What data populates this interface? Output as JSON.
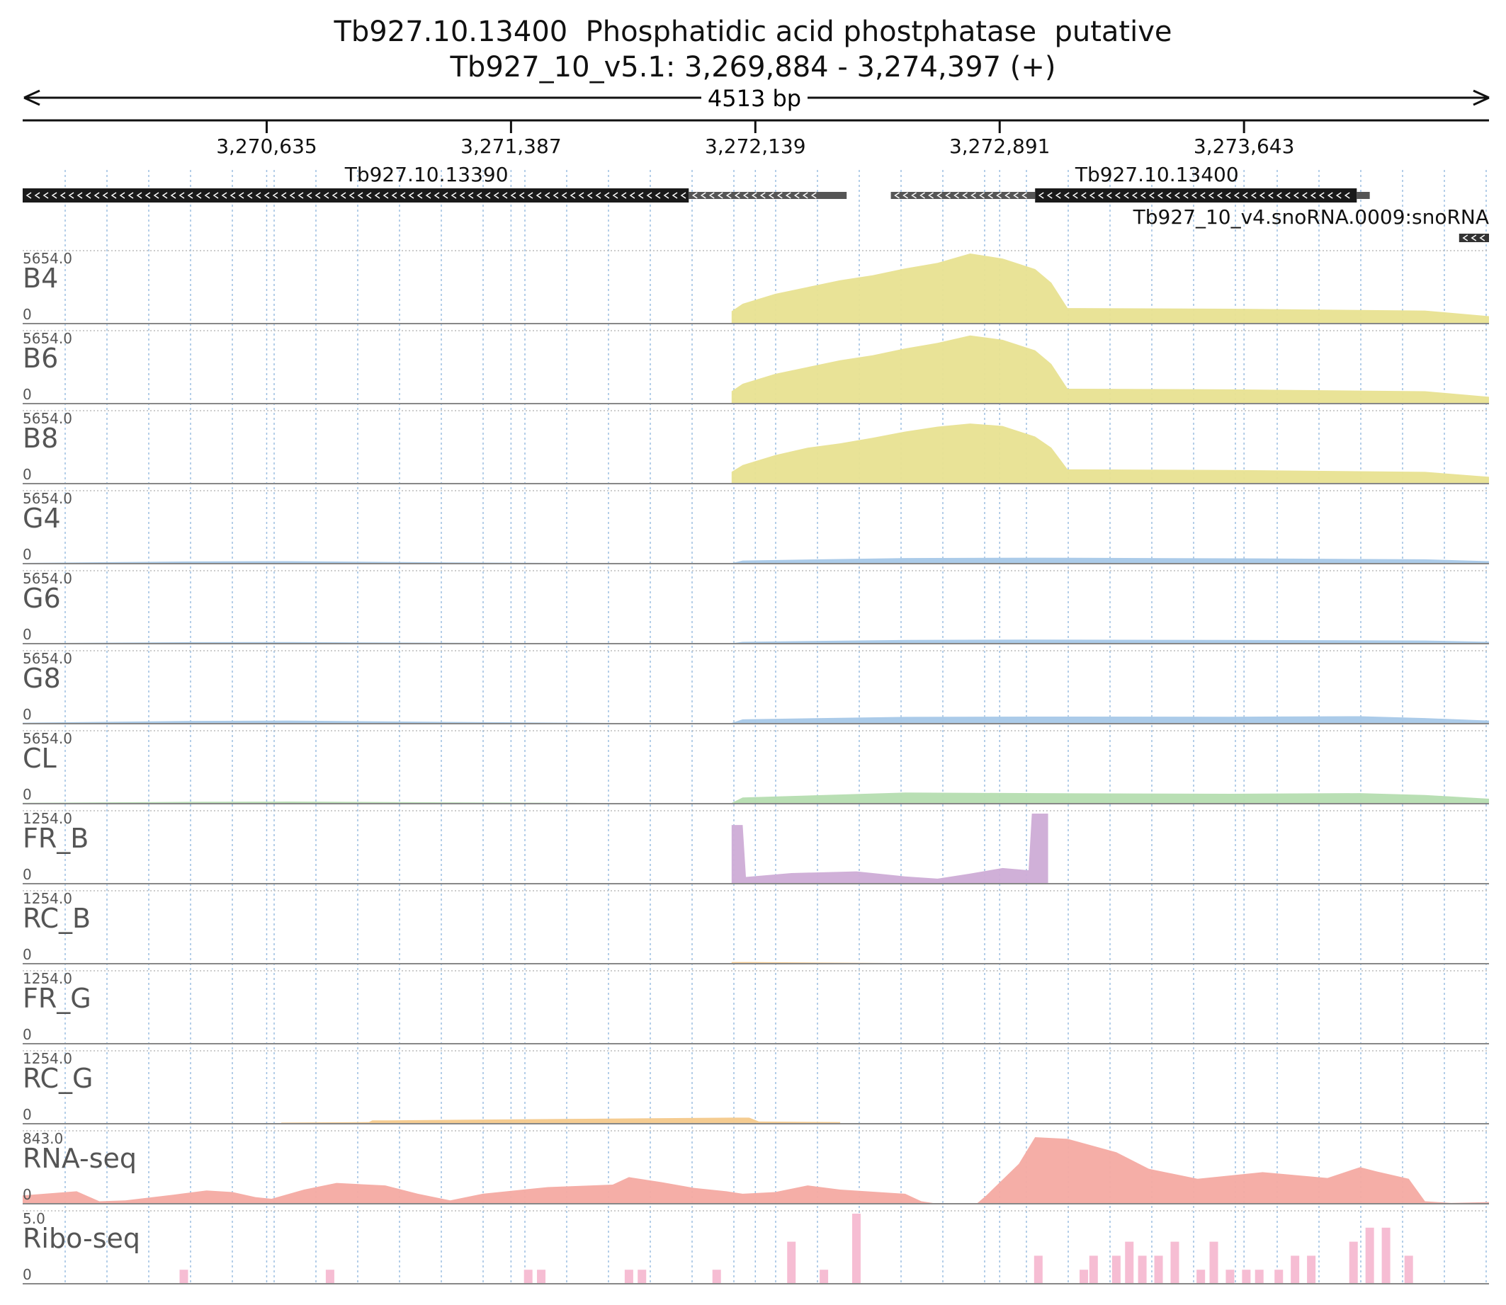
{
  "header": {
    "title": "Tb927.10.13400  Phosphatidic acid phostphatase  putative",
    "location": "Tb927_10_v5.1: 3,269,884 - 3,274,397 (+)",
    "span": "4513 bp"
  },
  "ruler": {
    "ticks": [
      {
        "pos": 3270635,
        "label": "3,270,635"
      },
      {
        "pos": 3271387,
        "label": "3,271,387"
      },
      {
        "pos": 3272139,
        "label": "3,272,139"
      },
      {
        "pos": 3272891,
        "label": "3,272,891"
      },
      {
        "pos": 3273643,
        "label": "3,273,643"
      }
    ]
  },
  "genes": [
    {
      "name": "Tb927.10.13390",
      "strand": "-",
      "cds": [
        3269884,
        3271934
      ],
      "utr": [
        3271934,
        3272420
      ]
    },
    {
      "name": "Tb927.10.13400",
      "strand": "-",
      "utr_left": [
        3272556,
        3273000
      ],
      "cds": [
        3273000,
        3273990
      ],
      "utr_right": [
        3273990,
        3274030
      ]
    },
    {
      "name": "Tb927_10_v4.snoRNA.0009:snoRNA",
      "strand": "-",
      "feature": [
        3274305,
        3274397
      ]
    }
  ],
  "colors": {
    "B": "#e8e291",
    "G": "#a7c8e8",
    "CL": "#b5ddb0",
    "FR_B": "#cdacd6",
    "orange": "#f4c98b",
    "rna": "#f4aaa2",
    "ribo": "#f6bdd3",
    "text_gray": "#555555",
    "grid_v": "#9bbde0",
    "grid_h": "#bbbbbb"
  },
  "chart_data": {
    "type": "area",
    "x_range": [
      3269884,
      3274397
    ],
    "x_unit": "bp",
    "tracks": [
      {
        "name": "B4",
        "max_label": "5654.0",
        "min_label": "0",
        "max": 5654,
        "color_key": "B",
        "points": [
          [
            3272066,
            1000
          ],
          [
            3272100,
            1600
          ],
          [
            3272200,
            2400
          ],
          [
            3272300,
            2950
          ],
          [
            3272400,
            3500
          ],
          [
            3272500,
            3900
          ],
          [
            3272600,
            4450
          ],
          [
            3272700,
            4900
          ],
          [
            3272800,
            5654
          ],
          [
            3272900,
            5250
          ],
          [
            3273000,
            4400
          ],
          [
            3273050,
            3300
          ],
          [
            3273100,
            1250
          ],
          [
            3273600,
            1200
          ],
          [
            3274200,
            1050
          ],
          [
            3274397,
            600
          ]
        ]
      },
      {
        "name": "B6",
        "max_label": "5654.0",
        "min_label": "0",
        "max": 5654,
        "color_key": "B",
        "points": [
          [
            3272066,
            1000
          ],
          [
            3272100,
            1600
          ],
          [
            3272200,
            2400
          ],
          [
            3272300,
            2950
          ],
          [
            3272400,
            3500
          ],
          [
            3272500,
            3900
          ],
          [
            3272600,
            4450
          ],
          [
            3272700,
            4900
          ],
          [
            3272800,
            5500
          ],
          [
            3272900,
            5150
          ],
          [
            3273000,
            4300
          ],
          [
            3273050,
            3200
          ],
          [
            3273100,
            1200
          ],
          [
            3273600,
            1150
          ],
          [
            3274200,
            1000
          ],
          [
            3274397,
            550
          ]
        ]
      },
      {
        "name": "B8",
        "max_label": "5654.0",
        "min_label": "0",
        "max": 5654,
        "color_key": "B",
        "points": [
          [
            3272066,
            950
          ],
          [
            3272100,
            1500
          ],
          [
            3272200,
            2300
          ],
          [
            3272300,
            2900
          ],
          [
            3272400,
            3250
          ],
          [
            3272500,
            3700
          ],
          [
            3272600,
            4200
          ],
          [
            3272700,
            4600
          ],
          [
            3272800,
            4850
          ],
          [
            3272900,
            4650
          ],
          [
            3273000,
            3800
          ],
          [
            3273050,
            2900
          ],
          [
            3273100,
            1150
          ],
          [
            3273600,
            1100
          ],
          [
            3274200,
            950
          ],
          [
            3274397,
            550
          ]
        ]
      },
      {
        "name": "G4",
        "max_label": "5654.0",
        "min_label": "0",
        "max": 5654,
        "color_key": "G",
        "points": [
          [
            3269884,
            60
          ],
          [
            3270400,
            180
          ],
          [
            3270700,
            200
          ],
          [
            3271200,
            100
          ],
          [
            3271700,
            40
          ],
          [
            3272066,
            40
          ],
          [
            3272100,
            250
          ],
          [
            3272600,
            450
          ],
          [
            3273000,
            480
          ],
          [
            3273600,
            430
          ],
          [
            3274200,
            350
          ],
          [
            3274397,
            200
          ]
        ]
      },
      {
        "name": "G6",
        "max_label": "5654.0",
        "min_label": "0",
        "max": 5654,
        "color_key": "G",
        "points": [
          [
            3269884,
            40
          ],
          [
            3270400,
            120
          ],
          [
            3270700,
            130
          ],
          [
            3271200,
            70
          ],
          [
            3271700,
            30
          ],
          [
            3272066,
            30
          ],
          [
            3272100,
            150
          ],
          [
            3272600,
            300
          ],
          [
            3273000,
            330
          ],
          [
            3273600,
            300
          ],
          [
            3274200,
            250
          ],
          [
            3274397,
            150
          ]
        ]
      },
      {
        "name": "G8",
        "max_label": "5654.0",
        "min_label": "0",
        "max": 5654,
        "color_key": "G",
        "points": [
          [
            3269884,
            80
          ],
          [
            3270400,
            220
          ],
          [
            3270700,
            250
          ],
          [
            3271200,
            140
          ],
          [
            3271700,
            60
          ],
          [
            3272066,
            60
          ],
          [
            3272100,
            350
          ],
          [
            3272600,
            550
          ],
          [
            3273000,
            570
          ],
          [
            3273600,
            560
          ],
          [
            3274000,
            600
          ],
          [
            3274200,
            450
          ],
          [
            3274397,
            250
          ]
        ]
      },
      {
        "name": "CL",
        "max_label": "5654.0",
        "min_label": "0",
        "max": 5654,
        "color_key": "CL",
        "points": [
          [
            3269884,
            70
          ],
          [
            3270400,
            150
          ],
          [
            3270700,
            170
          ],
          [
            3271200,
            110
          ],
          [
            3271700,
            50
          ],
          [
            3272066,
            60
          ],
          [
            3272100,
            500
          ],
          [
            3272600,
            900
          ],
          [
            3273000,
            850
          ],
          [
            3273600,
            800
          ],
          [
            3274000,
            850
          ],
          [
            3274200,
            700
          ],
          [
            3274397,
            400
          ]
        ]
      },
      {
        "name": "FR_B",
        "max_label": "1254.0",
        "min_label": "0",
        "max": 1254,
        "color_key": "FR_B",
        "points": [
          [
            3272066,
            1050
          ],
          [
            3272100,
            1050
          ],
          [
            3272110,
            120
          ],
          [
            3272250,
            190
          ],
          [
            3272450,
            220
          ],
          [
            3272600,
            130
          ],
          [
            3272700,
            90
          ],
          [
            3272800,
            180
          ],
          [
            3272900,
            280
          ],
          [
            3272980,
            240
          ],
          [
            3272990,
            1254
          ],
          [
            3273040,
            1254
          ]
        ]
      },
      {
        "name": "RC_B",
        "max_label": "1254.0",
        "min_label": "0",
        "max": 1254,
        "color_key": "orange",
        "points": [
          [
            3272066,
            30
          ],
          [
            3272120,
            30
          ],
          [
            3272600,
            10
          ]
        ]
      },
      {
        "name": "FR_G",
        "max_label": "1254.0",
        "min_label": "0",
        "max": 1254,
        "color_key": "orange",
        "points": [
          [
            3270950,
            10
          ],
          [
            3271040,
            10
          ],
          [
            3271260,
            10
          ],
          [
            3271320,
            10
          ]
        ]
      },
      {
        "name": "RC_G",
        "max_label": "1254.0",
        "min_label": "0",
        "max": 1254,
        "color_key": "orange",
        "points": [
          [
            3270680,
            20
          ],
          [
            3270950,
            30
          ],
          [
            3270960,
            60
          ],
          [
            3271010,
            60
          ],
          [
            3272066,
            110
          ],
          [
            3272120,
            110
          ],
          [
            3272150,
            40
          ],
          [
            3272400,
            30
          ]
        ]
      },
      {
        "name": "RNA-seq",
        "max_label": "843.0",
        "min_label": "0",
        "max": 843,
        "color_key": "rna",
        "points": [
          [
            3269884,
            100
          ],
          [
            3270050,
            150
          ],
          [
            3270120,
            30
          ],
          [
            3270200,
            40
          ],
          [
            3270350,
            110
          ],
          [
            3270450,
            160
          ],
          [
            3270530,
            140
          ],
          [
            3270600,
            80
          ],
          [
            3270650,
            60
          ],
          [
            3270750,
            170
          ],
          [
            3270850,
            250
          ],
          [
            3271000,
            220
          ],
          [
            3271100,
            120
          ],
          [
            3271200,
            40
          ],
          [
            3271300,
            120
          ],
          [
            3271500,
            200
          ],
          [
            3271700,
            230
          ],
          [
            3271750,
            320
          ],
          [
            3271850,
            260
          ],
          [
            3271950,
            190
          ],
          [
            3272050,
            150
          ],
          [
            3272100,
            120
          ],
          [
            3272200,
            140
          ],
          [
            3272300,
            220
          ],
          [
            3272400,
            170
          ],
          [
            3272600,
            120
          ],
          [
            3272650,
            30
          ],
          [
            3272700,
            0
          ],
          [
            3272820,
            0
          ],
          [
            3272850,
            100
          ],
          [
            3272950,
            480
          ],
          [
            3273000,
            800
          ],
          [
            3273100,
            780
          ],
          [
            3273250,
            620
          ],
          [
            3273350,
            420
          ],
          [
            3273500,
            300
          ],
          [
            3273700,
            380
          ],
          [
            3273900,
            310
          ],
          [
            3274000,
            440
          ],
          [
            3274050,
            390
          ],
          [
            3274150,
            300
          ],
          [
            3274200,
            30
          ],
          [
            3274280,
            10
          ],
          [
            3274397,
            20
          ]
        ]
      },
      {
        "name": "Ribo-seq",
        "max_label": "5.0",
        "min_label": "0",
        "max": 5,
        "color_key": "ribo",
        "bars": [
          [
            3270380,
            1
          ],
          [
            3270830,
            1
          ],
          [
            3271440,
            1
          ],
          [
            3271480,
            1
          ],
          [
            3271750,
            1
          ],
          [
            3271790,
            1
          ],
          [
            3272020,
            1
          ],
          [
            3272250,
            3
          ],
          [
            3272350,
            1
          ],
          [
            3272450,
            5
          ],
          [
            3273010,
            2
          ],
          [
            3273150,
            1
          ],
          [
            3273180,
            2
          ],
          [
            3273250,
            2
          ],
          [
            3273290,
            3
          ],
          [
            3273330,
            2
          ],
          [
            3273380,
            2
          ],
          [
            3273430,
            3
          ],
          [
            3273510,
            1
          ],
          [
            3273550,
            3
          ],
          [
            3273600,
            1
          ],
          [
            3273650,
            1
          ],
          [
            3273690,
            1
          ],
          [
            3273750,
            1
          ],
          [
            3273800,
            2
          ],
          [
            3273850,
            2
          ],
          [
            3273980,
            3
          ],
          [
            3274030,
            4
          ],
          [
            3274080,
            4
          ],
          [
            3274150,
            2
          ]
        ]
      }
    ]
  }
}
